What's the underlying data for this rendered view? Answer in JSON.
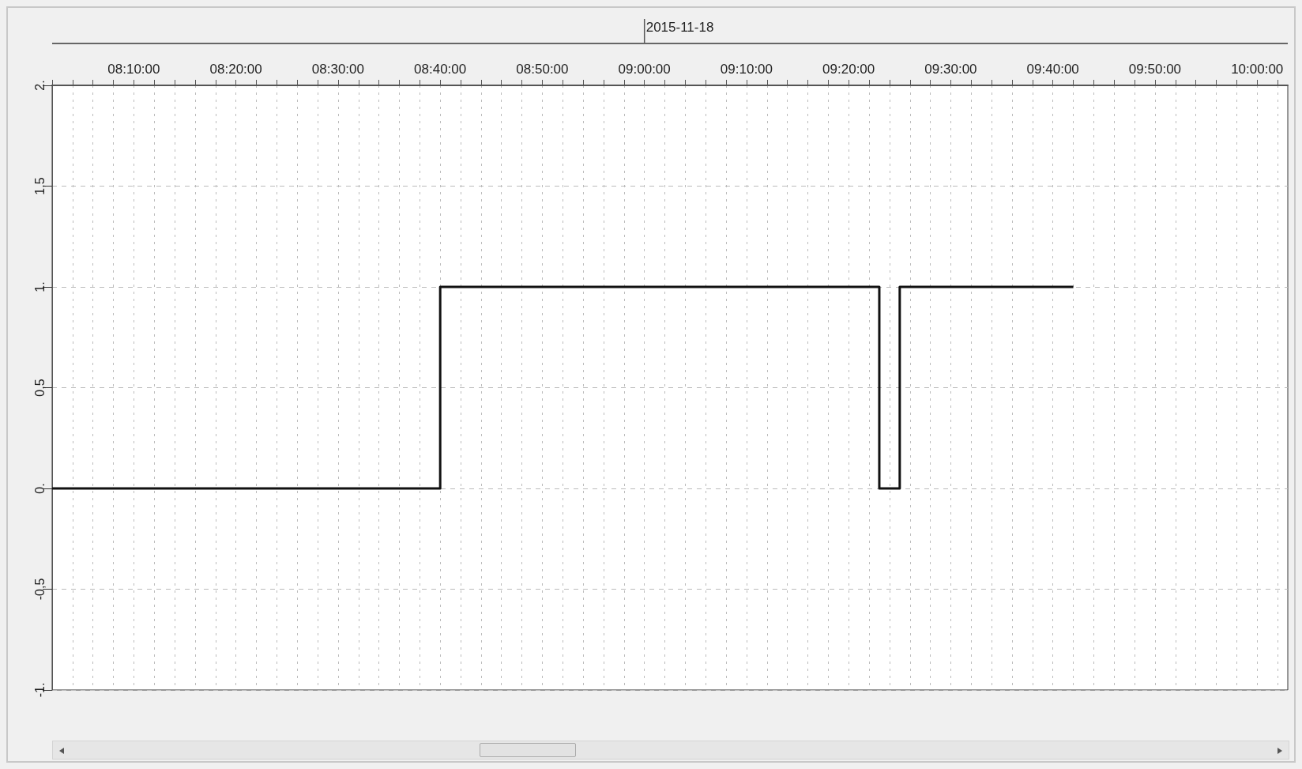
{
  "chart_data": {
    "type": "step",
    "x": [
      "2015-11-18T08:02",
      "2015-11-18T08:40",
      "2015-11-18T09:23",
      "2015-11-18T09:25",
      "2015-11-18T09:42"
    ],
    "series": [
      {
        "color": "#111111",
        "values": [
          0,
          1,
          0,
          1,
          1
        ]
      }
    ],
    "xlim": [
      "2015-11-18T08:02",
      "2015-11-18T10:03"
    ],
    "xticks": [
      {
        "value": "2015-11-18T08:02",
        "label": null
      },
      {
        "value": "2015-11-18T08:04",
        "label": null
      },
      {
        "value": "2015-11-18T08:06",
        "label": null
      },
      {
        "value": "2015-11-18T08:08",
        "label": null
      },
      {
        "value": "2015-11-18T08:10",
        "label": "08:10:00"
      },
      {
        "value": "2015-11-18T08:12",
        "label": null
      },
      {
        "value": "2015-11-18T08:14",
        "label": null
      },
      {
        "value": "2015-11-18T08:16",
        "label": null
      },
      {
        "value": "2015-11-18T08:18",
        "label": null
      },
      {
        "value": "2015-11-18T08:20",
        "label": "08:20:00"
      },
      {
        "value": "2015-11-18T08:22",
        "label": null
      },
      {
        "value": "2015-11-18T08:24",
        "label": null
      },
      {
        "value": "2015-11-18T08:26",
        "label": null
      },
      {
        "value": "2015-11-18T08:28",
        "label": null
      },
      {
        "value": "2015-11-18T08:30",
        "label": "08:30:00"
      },
      {
        "value": "2015-11-18T08:32",
        "label": null
      },
      {
        "value": "2015-11-18T08:34",
        "label": null
      },
      {
        "value": "2015-11-18T08:36",
        "label": null
      },
      {
        "value": "2015-11-18T08:38",
        "label": null
      },
      {
        "value": "2015-11-18T08:40",
        "label": "08:40:00"
      },
      {
        "value": "2015-11-18T08:42",
        "label": null
      },
      {
        "value": "2015-11-18T08:44",
        "label": null
      },
      {
        "value": "2015-11-18T08:46",
        "label": null
      },
      {
        "value": "2015-11-18T08:48",
        "label": null
      },
      {
        "value": "2015-11-18T08:50",
        "label": "08:50:00"
      },
      {
        "value": "2015-11-18T08:52",
        "label": null
      },
      {
        "value": "2015-11-18T08:54",
        "label": null
      },
      {
        "value": "2015-11-18T08:56",
        "label": null
      },
      {
        "value": "2015-11-18T08:58",
        "label": null
      },
      {
        "value": "2015-11-18T09:00",
        "label": "09:00:00"
      },
      {
        "value": "2015-11-18T09:02",
        "label": null
      },
      {
        "value": "2015-11-18T09:04",
        "label": null
      },
      {
        "value": "2015-11-18T09:06",
        "label": null
      },
      {
        "value": "2015-11-18T09:08",
        "label": null
      },
      {
        "value": "2015-11-18T09:10",
        "label": "09:10:00"
      },
      {
        "value": "2015-11-18T09:12",
        "label": null
      },
      {
        "value": "2015-11-18T09:14",
        "label": null
      },
      {
        "value": "2015-11-18T09:16",
        "label": null
      },
      {
        "value": "2015-11-18T09:18",
        "label": null
      },
      {
        "value": "2015-11-18T09:20",
        "label": "09:20:00"
      },
      {
        "value": "2015-11-18T09:22",
        "label": null
      },
      {
        "value": "2015-11-18T09:24",
        "label": null
      },
      {
        "value": "2015-11-18T09:26",
        "label": null
      },
      {
        "value": "2015-11-18T09:28",
        "label": null
      },
      {
        "value": "2015-11-18T09:30",
        "label": "09:30:00"
      },
      {
        "value": "2015-11-18T09:32",
        "label": null
      },
      {
        "value": "2015-11-18T09:34",
        "label": null
      },
      {
        "value": "2015-11-18T09:36",
        "label": null
      },
      {
        "value": "2015-11-18T09:38",
        "label": null
      },
      {
        "value": "2015-11-18T09:40",
        "label": "09:40:00"
      },
      {
        "value": "2015-11-18T09:42",
        "label": null
      },
      {
        "value": "2015-11-18T09:44",
        "label": null
      },
      {
        "value": "2015-11-18T09:46",
        "label": null
      },
      {
        "value": "2015-11-18T09:48",
        "label": null
      },
      {
        "value": "2015-11-18T09:50",
        "label": "09:50:00"
      },
      {
        "value": "2015-11-18T09:52",
        "label": null
      },
      {
        "value": "2015-11-18T09:54",
        "label": null
      },
      {
        "value": "2015-11-18T09:56",
        "label": null
      },
      {
        "value": "2015-11-18T09:58",
        "label": null
      },
      {
        "value": "2015-11-18T10:00",
        "label": "10:00:00"
      },
      {
        "value": "2015-11-18T10:02",
        "label": null
      }
    ],
    "ylim": [
      -1,
      2
    ],
    "yticks": [
      {
        "value": -1,
        "label": "-1."
      },
      {
        "value": -0.5,
        "label": "-0,5"
      },
      {
        "value": 0,
        "label": "0."
      },
      {
        "value": 0.5,
        "label": "0,5"
      },
      {
        "value": 1,
        "label": "1."
      },
      {
        "value": 1.5,
        "label": "1,5"
      },
      {
        "value": 2,
        "label": "2."
      }
    ],
    "annotations": [
      "2015-11-18"
    ],
    "grid": true,
    "line_style": "solid",
    "marker": "none"
  }
}
